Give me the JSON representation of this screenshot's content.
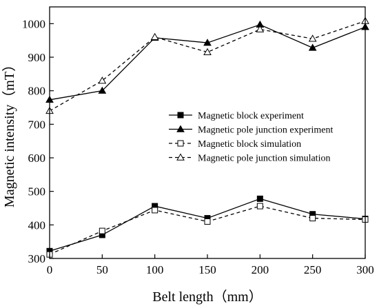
{
  "chart_data": {
    "type": "line",
    "x": [
      0,
      50,
      100,
      150,
      200,
      250,
      300
    ],
    "xlabel": "Belt length（mm）",
    "ylabel": "Magnetic intensity（mT）",
    "xlim": [
      0,
      300
    ],
    "ylim": [
      300,
      1050
    ],
    "xticks": [
      0,
      50,
      100,
      150,
      200,
      250,
      300
    ],
    "yticks": [
      300,
      400,
      500,
      600,
      700,
      800,
      900,
      1000
    ],
    "grid": false,
    "legend_position": "center-right",
    "series": [
      {
        "name": "Magnetic block experiment",
        "values": [
          322,
          370,
          456,
          420,
          478,
          432,
          418
        ],
        "marker": "filled-square",
        "line": "solid",
        "color": "#000000"
      },
      {
        "name": "Magnetic pole junction experiment",
        "values": [
          773,
          800,
          958,
          943,
          997,
          928,
          990
        ],
        "marker": "filled-triangle",
        "line": "solid",
        "color": "#000000"
      },
      {
        "name": "Magnetic block simulation",
        "values": [
          312,
          382,
          444,
          410,
          456,
          420,
          416
        ],
        "marker": "open-square",
        "line": "dashed",
        "color": "#000000"
      },
      {
        "name": "Magnetic pole junction simulation",
        "values": [
          740,
          830,
          960,
          915,
          983,
          955,
          1008
        ],
        "marker": "open-triangle",
        "line": "dashed",
        "color": "#000000"
      }
    ]
  }
}
